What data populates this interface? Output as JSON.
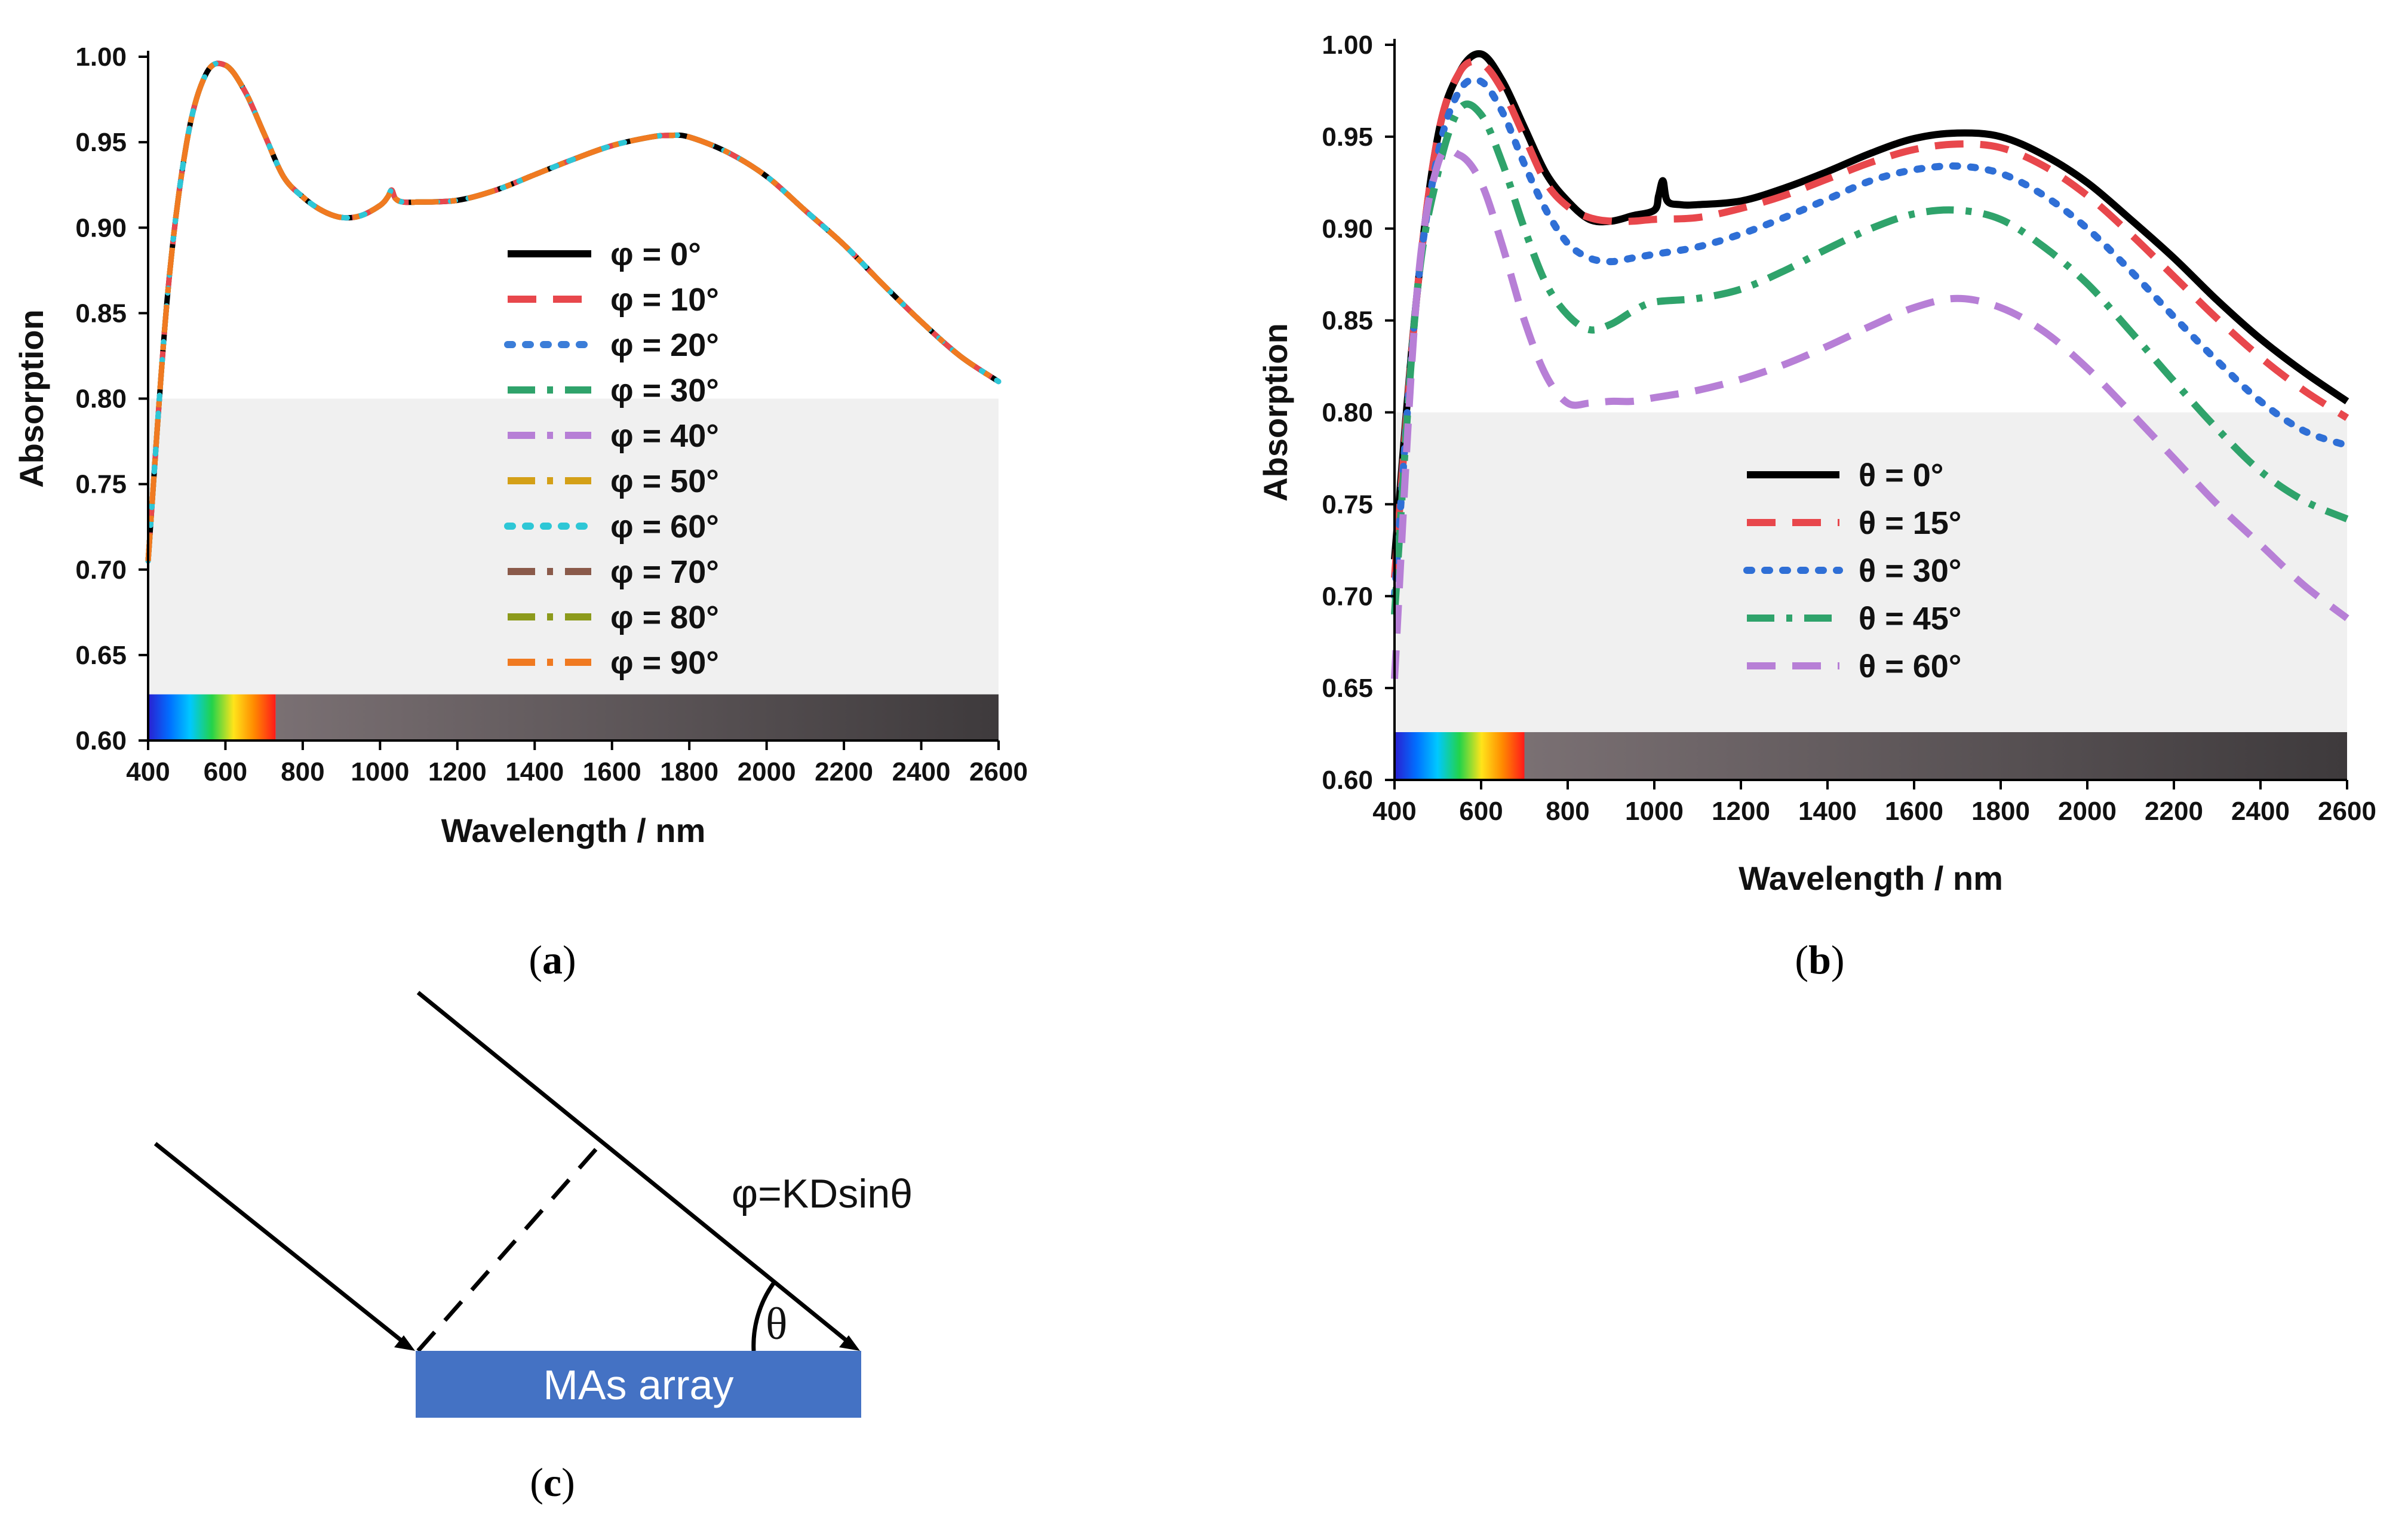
{
  "panels": {
    "a": {
      "caption": "(a)"
    },
    "b": {
      "caption": "(b)"
    },
    "c": {
      "caption": "(c)",
      "formula": "φ=KDsinθ",
      "angle_label": "θ",
      "box_label": "MAs array",
      "box_color": "#4472c4"
    }
  },
  "chart_data": [
    {
      "id": "a",
      "type": "line",
      "xlabel": "Wavelength / nm",
      "ylabel": "Absorption",
      "xlim": [
        400,
        2600
      ],
      "ylim": [
        0.6,
        1.0
      ],
      "xticks": [
        400,
        600,
        800,
        1000,
        1200,
        1400,
        1600,
        1800,
        2000,
        2200,
        2400,
        2600
      ],
      "yticks": [
        0.6,
        0.65,
        0.7,
        0.75,
        0.8,
        0.85,
        0.9,
        0.95,
        1.0
      ],
      "grid": false,
      "legend_position": "center-right",
      "background_band": {
        "y_from": 0.6,
        "y_to": 0.8,
        "color": "#f0f0f0"
      },
      "spectrum_bar": {
        "x_visible": [
          400,
          730
        ],
        "x_infrared": [
          730,
          2600
        ],
        "y_from": 0.6,
        "y_to": 0.627
      },
      "x": [
        400,
        450,
        500,
        550,
        600,
        650,
        700,
        750,
        800,
        850,
        900,
        950,
        1000,
        1020,
        1030,
        1040,
        1060,
        1100,
        1200,
        1300,
        1400,
        1500,
        1600,
        1700,
        1750,
        1800,
        1900,
        2000,
        2100,
        2200,
        2300,
        2400,
        2500,
        2600
      ],
      "series": [
        {
          "name": "φ = 0°",
          "color": "#000000",
          "dash": "solid",
          "values": [
            0.705,
            0.86,
            0.95,
            0.99,
            0.995,
            0.98,
            0.955,
            0.93,
            0.918,
            0.91,
            0.906,
            0.907,
            0.913,
            0.918,
            0.922,
            0.917,
            0.915,
            0.915,
            0.916,
            0.922,
            0.931,
            0.94,
            0.948,
            0.953,
            0.954,
            0.953,
            0.944,
            0.93,
            0.91,
            0.89,
            0.867,
            0.845,
            0.825,
            0.81
          ]
        },
        {
          "name": "φ = 10°",
          "color": "#e8474c",
          "dash": "long",
          "values": [
            0.705,
            0.86,
            0.95,
            0.99,
            0.995,
            0.98,
            0.955,
            0.93,
            0.918,
            0.91,
            0.906,
            0.907,
            0.913,
            0.918,
            0.922,
            0.917,
            0.915,
            0.915,
            0.916,
            0.922,
            0.931,
            0.94,
            0.948,
            0.953,
            0.954,
            0.953,
            0.944,
            0.93,
            0.91,
            0.89,
            0.867,
            0.845,
            0.825,
            0.81
          ]
        },
        {
          "name": "φ = 20°",
          "color": "#3b7dd8",
          "dash": "dot",
          "values": [
            0.705,
            0.86,
            0.95,
            0.99,
            0.995,
            0.98,
            0.955,
            0.93,
            0.918,
            0.91,
            0.906,
            0.907,
            0.913,
            0.918,
            0.922,
            0.917,
            0.915,
            0.915,
            0.916,
            0.922,
            0.931,
            0.94,
            0.948,
            0.953,
            0.954,
            0.953,
            0.944,
            0.93,
            0.91,
            0.89,
            0.867,
            0.845,
            0.825,
            0.81
          ]
        },
        {
          "name": "φ = 30°",
          "color": "#2fa36b",
          "dash": "dashdot",
          "values": [
            0.705,
            0.86,
            0.95,
            0.99,
            0.995,
            0.98,
            0.955,
            0.93,
            0.918,
            0.91,
            0.906,
            0.907,
            0.913,
            0.918,
            0.922,
            0.917,
            0.915,
            0.915,
            0.916,
            0.922,
            0.931,
            0.94,
            0.948,
            0.953,
            0.954,
            0.953,
            0.944,
            0.93,
            0.91,
            0.89,
            0.867,
            0.845,
            0.825,
            0.81
          ]
        },
        {
          "name": "φ = 40°",
          "color": "#b77fd6",
          "dash": "dashdot",
          "values": [
            0.705,
            0.86,
            0.95,
            0.99,
            0.995,
            0.98,
            0.955,
            0.93,
            0.918,
            0.91,
            0.906,
            0.907,
            0.913,
            0.918,
            0.922,
            0.917,
            0.915,
            0.915,
            0.916,
            0.922,
            0.931,
            0.94,
            0.948,
            0.953,
            0.954,
            0.953,
            0.944,
            0.93,
            0.91,
            0.89,
            0.867,
            0.845,
            0.825,
            0.81
          ]
        },
        {
          "name": "φ = 50°",
          "color": "#d4a017",
          "dash": "dashdot",
          "values": [
            0.705,
            0.86,
            0.95,
            0.99,
            0.995,
            0.98,
            0.955,
            0.93,
            0.918,
            0.91,
            0.906,
            0.907,
            0.913,
            0.918,
            0.922,
            0.917,
            0.915,
            0.915,
            0.916,
            0.922,
            0.931,
            0.94,
            0.948,
            0.953,
            0.954,
            0.953,
            0.944,
            0.93,
            0.91,
            0.89,
            0.867,
            0.845,
            0.825,
            0.81
          ]
        },
        {
          "name": "φ = 60°",
          "color": "#2ec7d6",
          "dash": "dot",
          "values": [
            0.705,
            0.86,
            0.95,
            0.99,
            0.995,
            0.98,
            0.955,
            0.93,
            0.918,
            0.91,
            0.906,
            0.907,
            0.913,
            0.918,
            0.922,
            0.917,
            0.915,
            0.915,
            0.916,
            0.922,
            0.931,
            0.94,
            0.948,
            0.953,
            0.954,
            0.953,
            0.944,
            0.93,
            0.91,
            0.89,
            0.867,
            0.845,
            0.825,
            0.81
          ]
        },
        {
          "name": "φ = 70°",
          "color": "#8a5a4a",
          "dash": "dashdot",
          "values": [
            0.705,
            0.86,
            0.95,
            0.99,
            0.995,
            0.98,
            0.955,
            0.93,
            0.918,
            0.91,
            0.906,
            0.907,
            0.913,
            0.918,
            0.922,
            0.917,
            0.915,
            0.915,
            0.916,
            0.922,
            0.931,
            0.94,
            0.948,
            0.953,
            0.954,
            0.953,
            0.944,
            0.93,
            0.91,
            0.89,
            0.867,
            0.845,
            0.825,
            0.81
          ]
        },
        {
          "name": "φ = 80°",
          "color": "#8c9a1b",
          "dash": "dashdot",
          "values": [
            0.705,
            0.86,
            0.95,
            0.99,
            0.995,
            0.98,
            0.955,
            0.93,
            0.918,
            0.91,
            0.906,
            0.907,
            0.913,
            0.918,
            0.922,
            0.917,
            0.915,
            0.915,
            0.916,
            0.922,
            0.931,
            0.94,
            0.948,
            0.953,
            0.954,
            0.953,
            0.944,
            0.93,
            0.91,
            0.89,
            0.867,
            0.845,
            0.825,
            0.81
          ]
        },
        {
          "name": "φ = 90°",
          "color": "#f07a21",
          "dash": "dashdot",
          "values": [
            0.705,
            0.86,
            0.95,
            0.99,
            0.995,
            0.98,
            0.955,
            0.93,
            0.918,
            0.91,
            0.906,
            0.907,
            0.913,
            0.918,
            0.922,
            0.917,
            0.915,
            0.915,
            0.916,
            0.922,
            0.931,
            0.94,
            0.948,
            0.953,
            0.954,
            0.953,
            0.944,
            0.93,
            0.91,
            0.89,
            0.867,
            0.845,
            0.825,
            0.81
          ]
        }
      ]
    },
    {
      "id": "b",
      "type": "line",
      "xlabel": "Wavelength / nm",
      "ylabel": "Absorption",
      "xlim": [
        400,
        2600
      ],
      "ylim": [
        0.6,
        1.0
      ],
      "xticks": [
        400,
        600,
        800,
        1000,
        1200,
        1400,
        1600,
        1800,
        2000,
        2200,
        2400,
        2600
      ],
      "yticks": [
        0.6,
        0.65,
        0.7,
        0.75,
        0.8,
        0.85,
        0.9,
        0.95,
        1.0
      ],
      "grid": false,
      "legend_position": "center",
      "background_band": {
        "y_from": 0.6,
        "y_to": 0.8,
        "color": "#f0f0f0"
      },
      "spectrum_bar": {
        "x_visible": [
          400,
          700
        ],
        "x_infrared": [
          700,
          2600
        ],
        "y_from": 0.6,
        "y_to": 0.626
      },
      "series": [
        {
          "name": "θ  =  0°",
          "color": "#000000",
          "dash": "solid",
          "x": [
            400,
            450,
            500,
            550,
            600,
            650,
            700,
            750,
            800,
            850,
            900,
            950,
            1000,
            1010,
            1020,
            1030,
            1060,
            1100,
            1200,
            1300,
            1400,
            1500,
            1600,
            1700,
            1800,
            1900,
            2000,
            2100,
            2200,
            2300,
            2400,
            2500,
            2600
          ],
          "values": [
            0.72,
            0.86,
            0.95,
            0.985,
            0.995,
            0.98,
            0.955,
            0.93,
            0.915,
            0.905,
            0.904,
            0.907,
            0.91,
            0.918,
            0.926,
            0.915,
            0.913,
            0.913,
            0.915,
            0.922,
            0.931,
            0.941,
            0.949,
            0.952,
            0.95,
            0.94,
            0.925,
            0.905,
            0.884,
            0.861,
            0.84,
            0.822,
            0.806
          ]
        },
        {
          "name": "θ  =  15°",
          "color": "#e8474c",
          "dash": "long",
          "x": [
            400,
            450,
            500,
            550,
            600,
            650,
            700,
            750,
            800,
            850,
            900,
            950,
            1000,
            1100,
            1200,
            1300,
            1400,
            1500,
            1600,
            1700,
            1800,
            1900,
            2000,
            2100,
            2200,
            2300,
            2400,
            2500,
            2600
          ],
          "values": [
            0.71,
            0.86,
            0.95,
            0.985,
            0.99,
            0.975,
            0.95,
            0.925,
            0.912,
            0.906,
            0.904,
            0.904,
            0.905,
            0.906,
            0.911,
            0.918,
            0.927,
            0.936,
            0.943,
            0.946,
            0.944,
            0.934,
            0.918,
            0.897,
            0.874,
            0.851,
            0.83,
            0.812,
            0.797
          ]
        },
        {
          "name": "θ  =  30°",
          "color": "#2f6fd6",
          "dash": "dot",
          "x": [
            400,
            450,
            500,
            550,
            600,
            650,
            700,
            750,
            800,
            850,
            900,
            950,
            1000,
            1100,
            1200,
            1300,
            1400,
            1500,
            1600,
            1700,
            1800,
            1900,
            2000,
            2100,
            2200,
            2300,
            2400,
            2500,
            2600
          ],
          "values": [
            0.7,
            0.86,
            0.94,
            0.975,
            0.98,
            0.963,
            0.935,
            0.91,
            0.892,
            0.884,
            0.882,
            0.884,
            0.886,
            0.89,
            0.897,
            0.906,
            0.916,
            0.926,
            0.932,
            0.934,
            0.93,
            0.918,
            0.9,
            0.877,
            0.852,
            0.828,
            0.806,
            0.79,
            0.782
          ]
        },
        {
          "name": "θ  =  45°",
          "color": "#2fa36b",
          "dash": "dashdot",
          "x": [
            400,
            450,
            500,
            550,
            600,
            650,
            700,
            750,
            800,
            850,
            900,
            950,
            1000,
            1100,
            1200,
            1300,
            1400,
            1500,
            1600,
            1700,
            1800,
            1900,
            2000,
            2100,
            2200,
            2300,
            2400,
            2500,
            2600
          ],
          "values": [
            0.69,
            0.86,
            0.93,
            0.965,
            0.962,
            0.935,
            0.9,
            0.87,
            0.853,
            0.845,
            0.848,
            0.855,
            0.86,
            0.862,
            0.867,
            0.877,
            0.889,
            0.9,
            0.908,
            0.91,
            0.905,
            0.89,
            0.87,
            0.844,
            0.817,
            0.791,
            0.768,
            0.752,
            0.742
          ]
        },
        {
          "name": "θ  =  60°",
          "color": "#b77fd6",
          "dash": "long",
          "x": [
            400,
            450,
            500,
            550,
            600,
            650,
            700,
            750,
            800,
            850,
            900,
            950,
            1000,
            1100,
            1200,
            1300,
            1400,
            1500,
            1600,
            1700,
            1800,
            1900,
            2000,
            2100,
            2200,
            2300,
            2400,
            2500,
            2600
          ],
          "values": [
            0.655,
            0.86,
            0.935,
            0.94,
            0.925,
            0.89,
            0.85,
            0.82,
            0.805,
            0.805,
            0.806,
            0.806,
            0.808,
            0.812,
            0.818,
            0.826,
            0.836,
            0.847,
            0.857,
            0.862,
            0.857,
            0.844,
            0.824,
            0.8,
            0.775,
            0.75,
            0.728,
            0.706,
            0.688
          ]
        }
      ]
    }
  ]
}
